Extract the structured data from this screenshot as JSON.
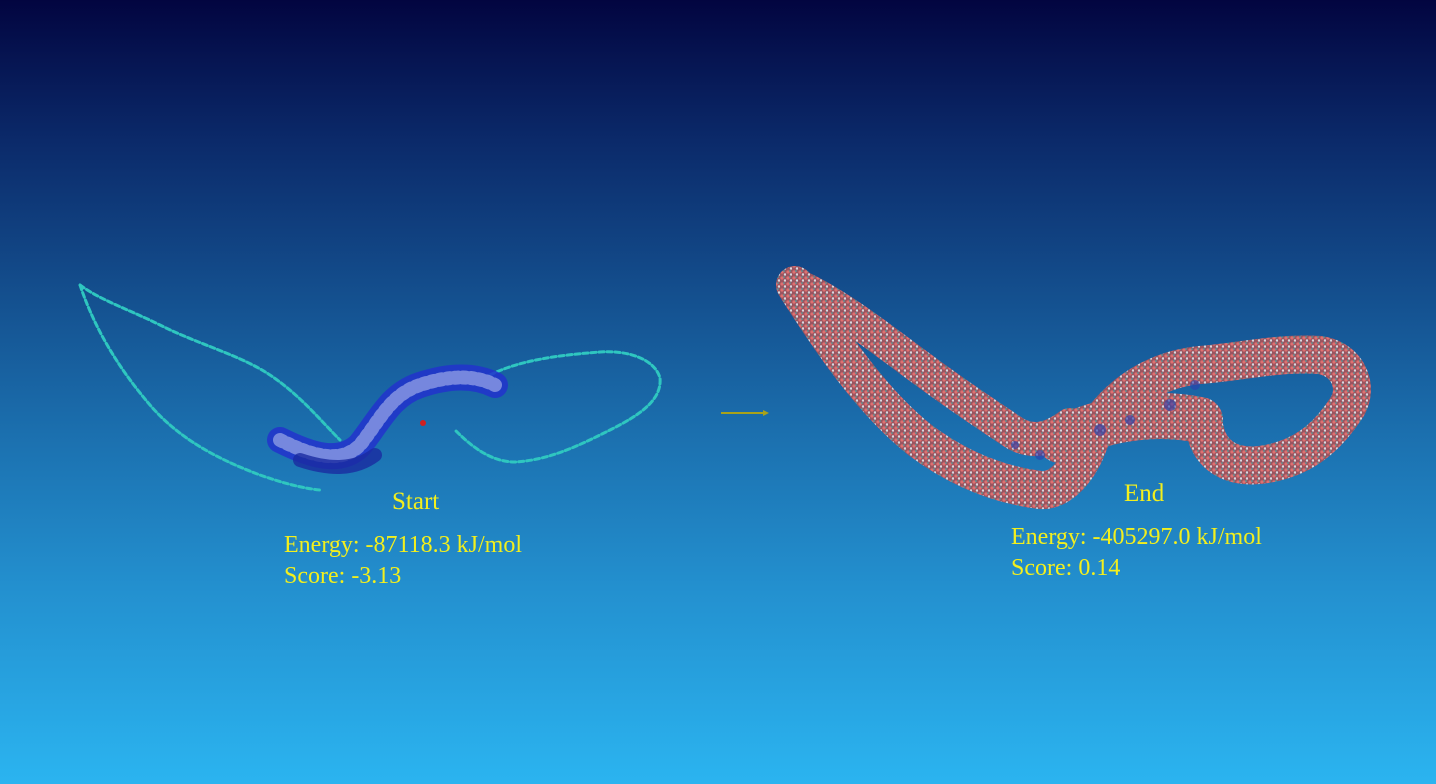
{
  "start": {
    "title": "Start",
    "energy": "Energy: -87118.3 kJ/mol",
    "score": "Score: -3.13"
  },
  "end": {
    "title": "End",
    "energy": "Energy: -405297.0 kJ/mol",
    "score": "Score: 0.14"
  },
  "colors": {
    "label": "#f3ef1d",
    "arrow": "#a8a21a",
    "backbone": "#2fc6c0",
    "helix": "#2233cc",
    "solvent": "#b86a6e"
  },
  "icons": {
    "arrow": "right-arrow-icon"
  }
}
